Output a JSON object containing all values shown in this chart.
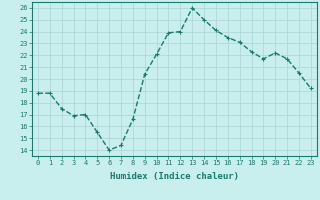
{
  "x": [
    0,
    1,
    2,
    3,
    4,
    5,
    6,
    7,
    8,
    9,
    10,
    11,
    12,
    13,
    14,
    15,
    16,
    17,
    18,
    19,
    20,
    21,
    22,
    23
  ],
  "y": [
    18.8,
    18.8,
    17.5,
    16.9,
    17.0,
    15.5,
    14.0,
    14.4,
    16.6,
    20.4,
    22.1,
    23.9,
    24.0,
    26.0,
    25.0,
    24.1,
    23.5,
    23.1,
    22.3,
    21.7,
    22.2,
    21.7,
    20.5,
    19.2
  ],
  "line_color": "#1a7a6e",
  "marker": "+",
  "bg_color": "#c8eeee",
  "grid_color": "#aad4d4",
  "xlabel": "Humidex (Indice chaleur)",
  "xlim": [
    -0.5,
    23.5
  ],
  "ylim": [
    13.5,
    26.5
  ],
  "yticks": [
    14,
    15,
    16,
    17,
    18,
    19,
    20,
    21,
    22,
    23,
    24,
    25,
    26
  ],
  "xticks": [
    0,
    1,
    2,
    3,
    4,
    5,
    6,
    7,
    8,
    9,
    10,
    11,
    12,
    13,
    14,
    15,
    16,
    17,
    18,
    19,
    20,
    21,
    22,
    23
  ],
  "axis_color": "#1a7a6e",
  "tick_color": "#1a7a6e",
  "label_color": "#1a7a6e",
  "linewidth": 1.0,
  "markersize": 3,
  "tick_fontsize": 5.0,
  "xlabel_fontsize": 6.5
}
